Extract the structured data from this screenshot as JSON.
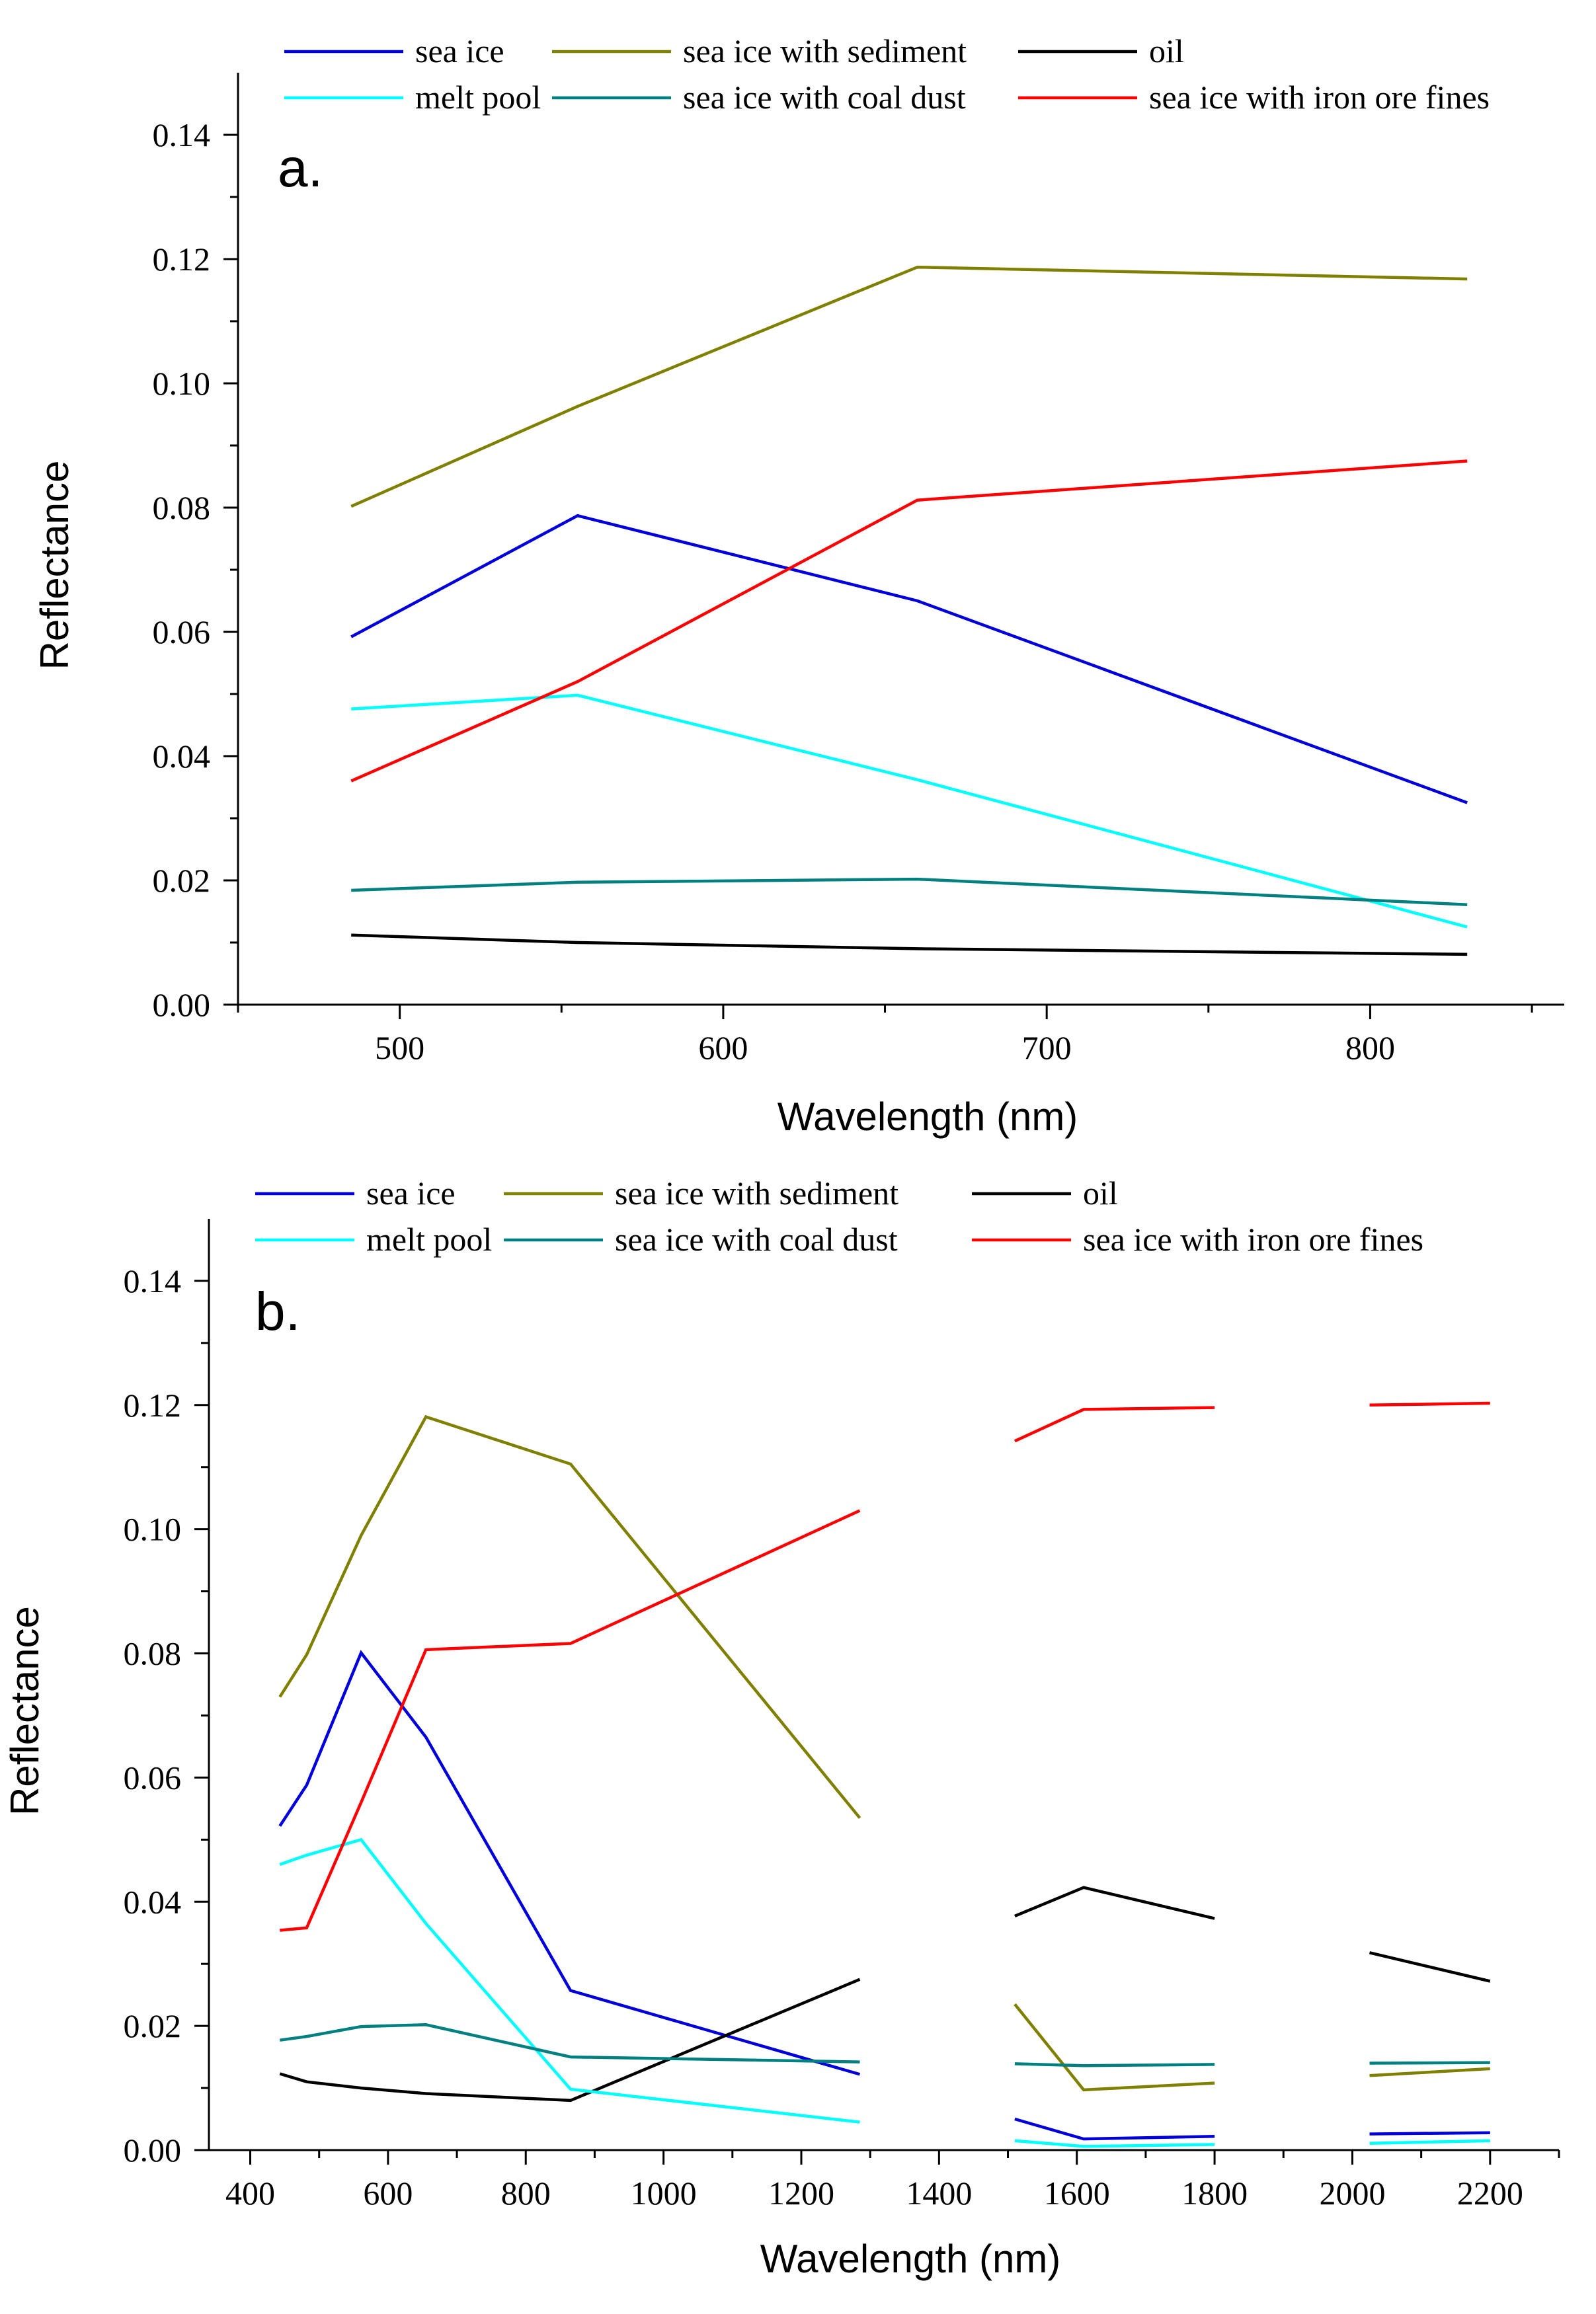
{
  "chart_data": [
    {
      "type": "line",
      "panel_label": "a.",
      "xlabel": "Wavelength (nm)",
      "ylabel": "Reflectance",
      "xlim": [
        450,
        860
      ],
      "ylim": [
        0,
        0.15
      ],
      "xticks": [
        500,
        600,
        700,
        800
      ],
      "xtick_labels": [
        "500",
        "600",
        "700",
        "800"
      ],
      "yticks": [
        0,
        0.02,
        0.04,
        0.06,
        0.08,
        0.1,
        0.12,
        0.14
      ],
      "ytick_labels": [
        "0.00",
        "0.02",
        "0.04",
        "0.06",
        "0.08",
        "0.10",
        "0.12",
        "0.14"
      ],
      "legend_rows": [
        [
          "sea ice",
          "sea ice with sediment",
          "oil"
        ],
        [
          "melt pool",
          "sea ice with coal dust",
          "sea ice with iron ore fines"
        ]
      ],
      "series": [
        {
          "name": "sea ice",
          "color": "#0000dd",
          "segments": [
            [
              [
                485,
                0.0592
              ],
              [
                555,
                0.0787
              ],
              [
                660,
                0.065
              ],
              [
                830,
                0.0325
              ]
            ]
          ]
        },
        {
          "name": "sea ice with sediment",
          "color": "#808000",
          "segments": [
            [
              [
                485,
                0.0802
              ],
              [
                555,
                0.0963
              ],
              [
                660,
                0.1187
              ],
              [
                830,
                0.1168
              ]
            ]
          ]
        },
        {
          "name": "oil",
          "color": "#000000",
          "segments": [
            [
              [
                485,
                0.0112
              ],
              [
                555,
                0.01
              ],
              [
                660,
                0.009
              ],
              [
                830,
                0.0081
              ]
            ]
          ]
        },
        {
          "name": "melt pool",
          "color": "#00ffff",
          "segments": [
            [
              [
                485,
                0.0476
              ],
              [
                555,
                0.0498
              ],
              [
                660,
                0.0362
              ],
              [
                830,
                0.0125
              ]
            ]
          ]
        },
        {
          "name": "sea ice with coal dust",
          "color": "#008080",
          "segments": [
            [
              [
                485,
                0.0184
              ],
              [
                555,
                0.0197
              ],
              [
                660,
                0.0202
              ],
              [
                830,
                0.0161
              ]
            ]
          ]
        },
        {
          "name": "sea ice with iron ore fines",
          "color": "#ff0000",
          "segments": [
            [
              [
                485,
                0.036
              ],
              [
                555,
                0.052
              ],
              [
                660,
                0.0812
              ],
              [
                830,
                0.0875
              ]
            ]
          ]
        }
      ]
    },
    {
      "type": "line",
      "panel_label": "b.",
      "xlabel": "Wavelength (nm)",
      "ylabel": "Reflectance",
      "xlim": [
        340,
        2300
      ],
      "ylim": [
        0,
        0.15
      ],
      "xticks": [
        400,
        600,
        800,
        1000,
        1200,
        1400,
        1600,
        1800,
        2000,
        2200
      ],
      "xtick_labels": [
        "400",
        "600",
        "800",
        "1000",
        "1200",
        "1400",
        "1600",
        "1800",
        "2000",
        "2200"
      ],
      "yticks": [
        0,
        0.02,
        0.04,
        0.06,
        0.08,
        0.1,
        0.12,
        0.14
      ],
      "ytick_labels": [
        "0.00",
        "0.02",
        "0.04",
        "0.06",
        "0.08",
        "0.10",
        "0.12",
        "0.14"
      ],
      "legend_rows": [
        [
          "sea ice",
          "sea ice with sediment",
          "oil"
        ],
        [
          "melt pool",
          "sea ice with coal dust",
          "sea ice with iron ore fines"
        ]
      ],
      "series": [
        {
          "name": "sea ice",
          "color": "#0000dd",
          "segments": [
            [
              [
                443,
                0.0522
              ],
              [
                482,
                0.0588
              ],
              [
                561,
                0.0801
              ],
              [
                655,
                0.0665
              ],
              [
                865,
                0.0257
              ],
              [
                1285,
                0.0122
              ]
            ],
            [
              [
                1510,
                0.005
              ],
              [
                1610,
                0.0018
              ],
              [
                1800,
                0.0022
              ]
            ],
            [
              [
                2025,
                0.0026
              ],
              [
                2200,
                0.0028
              ]
            ]
          ]
        },
        {
          "name": "sea ice with sediment",
          "color": "#808000",
          "segments": [
            [
              [
                443,
                0.073
              ],
              [
                482,
                0.0798
              ],
              [
                561,
                0.099
              ],
              [
                655,
                0.1181
              ],
              [
                865,
                0.1105
              ],
              [
                1285,
                0.0535
              ]
            ],
            [
              [
                1510,
                0.0235
              ],
              [
                1610,
                0.0097
              ],
              [
                1800,
                0.0108
              ]
            ],
            [
              [
                2025,
                0.012
              ],
              [
                2200,
                0.0131
              ]
            ]
          ]
        },
        {
          "name": "oil",
          "color": "#000000",
          "segments": [
            [
              [
                443,
                0.0123
              ],
              [
                482,
                0.011
              ],
              [
                561,
                0.01
              ],
              [
                655,
                0.0091
              ],
              [
                865,
                0.008
              ],
              [
                1285,
                0.0275
              ]
            ],
            [
              [
                1510,
                0.0377
              ],
              [
                1610,
                0.0423
              ],
              [
                1800,
                0.0373
              ]
            ],
            [
              [
                2025,
                0.0318
              ],
              [
                2200,
                0.0272
              ]
            ]
          ]
        },
        {
          "name": "melt pool",
          "color": "#00ffff",
          "segments": [
            [
              [
                443,
                0.046
              ],
              [
                482,
                0.0475
              ],
              [
                561,
                0.05
              ],
              [
                655,
                0.0365
              ],
              [
                865,
                0.0098
              ],
              [
                1285,
                0.0045
              ]
            ],
            [
              [
                1510,
                0.0015
              ],
              [
                1610,
                0.0006
              ],
              [
                1800,
                0.0009
              ]
            ],
            [
              [
                2025,
                0.0011
              ],
              [
                2200,
                0.0015
              ]
            ]
          ]
        },
        {
          "name": "sea ice with coal dust",
          "color": "#008080",
          "segments": [
            [
              [
                443,
                0.0177
              ],
              [
                482,
                0.0183
              ],
              [
                561,
                0.0199
              ],
              [
                655,
                0.0202
              ],
              [
                865,
                0.015
              ],
              [
                1285,
                0.0142
              ]
            ],
            [
              [
                1510,
                0.0139
              ],
              [
                1610,
                0.0136
              ],
              [
                1800,
                0.0138
              ]
            ],
            [
              [
                2025,
                0.014
              ],
              [
                2200,
                0.0141
              ]
            ]
          ]
        },
        {
          "name": "sea ice with iron ore fines",
          "color": "#ff0000",
          "segments": [
            [
              [
                443,
                0.0354
              ],
              [
                482,
                0.0358
              ],
              [
                561,
                0.056
              ],
              [
                655,
                0.0806
              ],
              [
                865,
                0.0816
              ],
              [
                1285,
                0.103
              ]
            ],
            [
              [
                1510,
                0.1142
              ],
              [
                1610,
                0.1193
              ],
              [
                1800,
                0.1196
              ]
            ],
            [
              [
                2025,
                0.12
              ],
              [
                2200,
                0.1203
              ]
            ]
          ]
        }
      ]
    }
  ]
}
